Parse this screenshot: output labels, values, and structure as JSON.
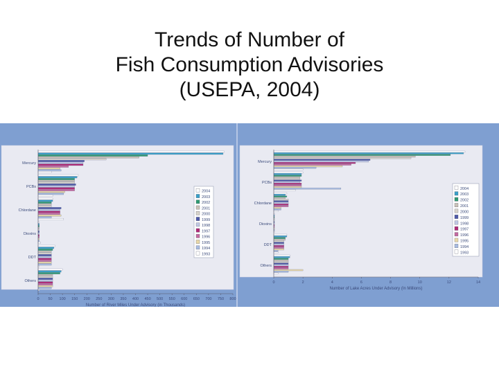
{
  "title_lines": [
    "Trends of Number of",
    "Fish Consumption Advisories",
    "(USEPA, 2004)"
  ],
  "colors": {
    "panel_bg": "#7f9fd1",
    "plot_bg": "#e9eaf2",
    "year_colors": {
      "2004": "#ffffff",
      "2003": "#3aa0c8",
      "2002": "#2f9a72",
      "2001": "#c9c2b8",
      "2000": "#d8d4cc",
      "1999": "#4e5aa8",
      "1998": "#c0c8e4",
      "1997": "#b02a77",
      "1996": "#c46aa0",
      "1995": "#e8d8a8",
      "1994": "#a8bce0",
      "1993": "#ffffff"
    }
  },
  "chart_data": [
    {
      "type": "bar",
      "orientation": "horizontal",
      "categories": [
        "Mercury",
        "PCBs",
        "Chlordane",
        "Dioxins",
        "DDT",
        "Others"
      ],
      "legend": [
        "2004",
        "2003",
        "2002",
        "2001",
        "2000",
        "1999",
        "1998",
        "1997",
        "1996",
        "1995",
        "1994",
        "1993"
      ],
      "legend_labels": [
        "2004",
        "2003",
        "2002",
        "2001",
        "2000",
        "1999",
        "1998",
        "1997",
        "1996",
        "1995",
        "1994",
        "1993"
      ],
      "series": [
        {
          "name": "2004",
          "values": [
            765,
            165,
            60,
            5,
            70,
            100
          ]
        },
        {
          "name": "2003",
          "values": [
            760,
            160,
            60,
            5,
            65,
            95
          ]
        },
        {
          "name": "2002",
          "values": [
            450,
            150,
            55,
            5,
            60,
            90
          ]
        },
        {
          "name": "2001",
          "values": [
            415,
            150,
            55,
            5,
            55,
            60
          ]
        },
        {
          "name": "2000",
          "values": [
            280,
            150,
            55,
            5,
            55,
            60
          ]
        },
        {
          "name": "1999",
          "values": [
            190,
            155,
            95,
            5,
            55,
            60
          ]
        },
        {
          "name": "1998",
          "values": [
            185,
            150,
            90,
            5,
            55,
            60
          ]
        },
        {
          "name": "1997",
          "values": [
            185,
            150,
            90,
            5,
            55,
            60
          ]
        },
        {
          "name": "1996",
          "values": [
            125,
            150,
            90,
            5,
            55,
            60
          ]
        },
        {
          "name": "1995",
          "values": [
            90,
            110,
            95,
            5,
            55,
            60
          ]
        },
        {
          "name": "1994",
          "values": [
            95,
            105,
            55,
            5,
            55,
            55
          ]
        },
        {
          "name": "1993",
          "values": [
            55,
            60,
            105,
            10,
            5,
            5
          ]
        }
      ],
      "xlim": [
        0,
        800
      ],
      "xticks": [
        "0",
        "50",
        "100",
        "150",
        "200",
        "250",
        "300",
        "350",
        "400",
        "450",
        "500",
        "550",
        "600",
        "650",
        "700",
        "750",
        "800"
      ],
      "xlabel": "Number of River Miles Under Advisory (in Thousands)",
      "ylabel": "",
      "legend_position": "right",
      "grid": false
    },
    {
      "type": "bar",
      "orientation": "horizontal",
      "categories": [
        "Mercury",
        "PCBs",
        "Chlordane",
        "Dioxins",
        "DDT",
        "Others"
      ],
      "legend": [
        "2004",
        "2003",
        "2002",
        "2001",
        "2000",
        "1999",
        "1998",
        "1997",
        "1996",
        "1995",
        "1994",
        "1993"
      ],
      "legend_labels": [
        "2004",
        "2003",
        "2002",
        "2001",
        "2000",
        "1999",
        "1998",
        "1997",
        "1996",
        "1995",
        "1994",
        "1993"
      ],
      "series": [
        {
          "name": "2004",
          "values": [
            13.1,
            2.0,
            0.9,
            0.05,
            0.9,
            1.1
          ]
        },
        {
          "name": "2003",
          "values": [
            13.0,
            1.9,
            0.8,
            0.05,
            0.9,
            1.1
          ]
        },
        {
          "name": "2002",
          "values": [
            12.1,
            1.9,
            0.9,
            0.05,
            0.8,
            1.0
          ]
        },
        {
          "name": "2001",
          "values": [
            9.7,
            1.8,
            0.8,
            0.05,
            0.8,
            1.0
          ]
        },
        {
          "name": "2000",
          "values": [
            9.4,
            1.8,
            1.0,
            0.05,
            0.7,
            1.0
          ]
        },
        {
          "name": "1999",
          "values": [
            6.6,
            1.9,
            1.0,
            0.05,
            0.7,
            1.0
          ]
        },
        {
          "name": "1998",
          "values": [
            6.5,
            1.8,
            1.0,
            0.05,
            0.7,
            1.0
          ]
        },
        {
          "name": "1997",
          "values": [
            5.6,
            1.9,
            1.0,
            0.05,
            0.7,
            1.0
          ]
        },
        {
          "name": "1996",
          "values": [
            5.3,
            1.9,
            1.0,
            0.05,
            0.7,
            1.0
          ]
        },
        {
          "name": "1995",
          "values": [
            4.7,
            1.9,
            0.5,
            0.05,
            0.7,
            2.0
          ]
        },
        {
          "name": "1994",
          "values": [
            2.9,
            4.6,
            0.5,
            0.05,
            0.3,
            1.0
          ]
        },
        {
          "name": "1993",
          "values": [
            2.0,
            1.5,
            0.3,
            0.05,
            0.3,
            0.3
          ]
        }
      ],
      "xlim": [
        0,
        14
      ],
      "xticks": [
        "0",
        "2",
        "4",
        "6",
        "8",
        "10",
        "12",
        "14"
      ],
      "xlabel": "Number of Lake Acres Under Advisory (In Millions)",
      "ylabel": "",
      "legend_position": "right",
      "grid": false
    }
  ]
}
